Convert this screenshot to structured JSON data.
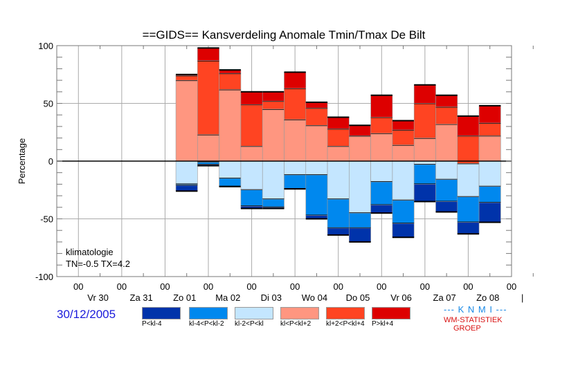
{
  "chart_data": {
    "type": "bar",
    "stacked": true,
    "title": "==GIDS== Kansverdeling Anomale Tmin/Tmax De Bilt",
    "xlabel": "",
    "ylabel": "Percentage",
    "ylim": [
      -100,
      100
    ],
    "yticks": [
      100,
      50,
      0,
      -50,
      -100
    ],
    "grid": true,
    "x_day_labels": [
      "Vr 30",
      "Za 31",
      "Zo 01",
      "Ma 02",
      "Di 03",
      "Wo 04",
      "Do 05",
      "Vr 06",
      "Za 07",
      "Zo 08"
    ],
    "x_hour_label": "00",
    "x_hour_count": 11,
    "x_range_days": [
      0,
      10.5
    ],
    "bar_start_day": 2.75,
    "bar_width_days": 0.5,
    "categories": [
      "1",
      "2",
      "3",
      "4",
      "5",
      "6",
      "7",
      "8",
      "9",
      "10",
      "11",
      "12",
      "13",
      "14",
      "15"
    ],
    "series": [
      {
        "name": "P<kl-4",
        "color": "#0033aa",
        "bottom": [
          -26,
          -4,
          -22,
          -41,
          -41,
          -24,
          -50,
          -64,
          -70,
          -45,
          -66,
          -35,
          -44,
          -63,
          -53
        ]
      },
      {
        "name": "kl-4<P<kl-2",
        "color": "#0088ee",
        "bottom": [
          -21,
          -3,
          -22,
          -39,
          -40,
          -24,
          -47,
          -58,
          -58,
          -38,
          -54,
          -20,
          -35,
          -53,
          -36
        ]
      },
      {
        "name": "kl-2<P<kl",
        "color": "#c4e6ff",
        "bottom": [
          -20,
          -1,
          -15,
          -25,
          -33,
          -12,
          -12,
          -33,
          -45,
          -18,
          -34,
          -3,
          -16,
          -31,
          -22
        ]
      },
      {
        "name": "kl<P<kl+2",
        "color": "#ff9680",
        "top": [
          70,
          23,
          62,
          13,
          45,
          36,
          31,
          13,
          22,
          24,
          14,
          20,
          32,
          -2,
          22
        ]
      },
      {
        "name": "kl+2<P<kl+4",
        "color": "#ff4422",
        "top": [
          74,
          87,
          76,
          49,
          52,
          63,
          46,
          28,
          22,
          38,
          27,
          50,
          47,
          22,
          33
        ]
      },
      {
        "name": "P>kl+4",
        "color": "#dd0000",
        "top": [
          75,
          98,
          79,
          60,
          60,
          77,
          51,
          38,
          31,
          57,
          35,
          66,
          57,
          39,
          48
        ]
      }
    ],
    "annotation": [
      "klimatologie",
      "TN=-0.5  TX=4.2"
    ],
    "legend_position": "bottom"
  },
  "footer": {
    "date": "30/12/2005",
    "knmi": "--- K N M I ---",
    "wm_line1": "WM-STATISTIEK",
    "wm_line2": "GROEP"
  }
}
